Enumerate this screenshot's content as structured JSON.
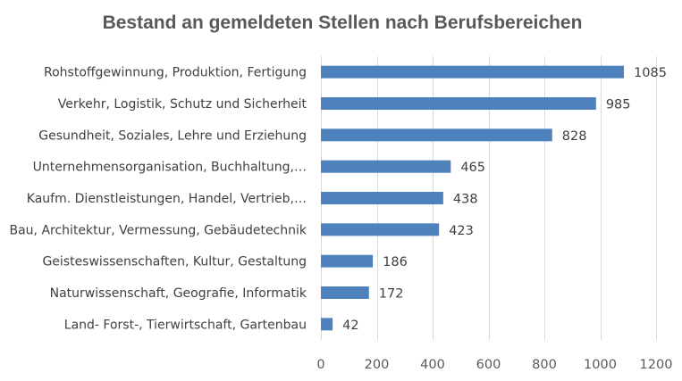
{
  "chart_data": {
    "type": "bar",
    "orientation": "horizontal",
    "title": "Bestand an gemeldeten Stellen nach Berufsbereichen",
    "categories": [
      "Rohstoffgewinnung, Produktion, Fertigung",
      "Verkehr, Logistik, Schutz und Sicherheit",
      "Gesundheit, Soziales, Lehre und Erziehung",
      "Unternehmensorganisation, Buchhaltung,…",
      "Kaufm. Dienstleistungen, Handel, Vertrieb,…",
      "Bau, Architektur, Vermessung, Gebäudetechnik",
      "Geisteswissenschaften, Kultur, Gestaltung",
      "Naturwissenschaft, Geografie, Informatik",
      "Land- Forst-, Tierwirtschaft, Gartenbau"
    ],
    "values": [
      1085,
      985,
      828,
      465,
      438,
      423,
      186,
      172,
      42
    ],
    "data_labels": [
      "1085",
      "985",
      "828",
      "465",
      "438",
      "423",
      "186",
      "172",
      "42"
    ],
    "xlim": [
      0,
      1200
    ],
    "xticks": [
      0,
      200,
      400,
      600,
      800,
      1000,
      1200
    ],
    "xtick_labels": [
      "0",
      "200",
      "400",
      "600",
      "800",
      "1000",
      "1200"
    ],
    "xlabel": "",
    "ylabel": "",
    "grid": true,
    "legend": "none",
    "colors": {
      "bar": "#4f81bd",
      "grid": "#d9d9d9",
      "title": "#595959",
      "text": "#404040"
    }
  }
}
